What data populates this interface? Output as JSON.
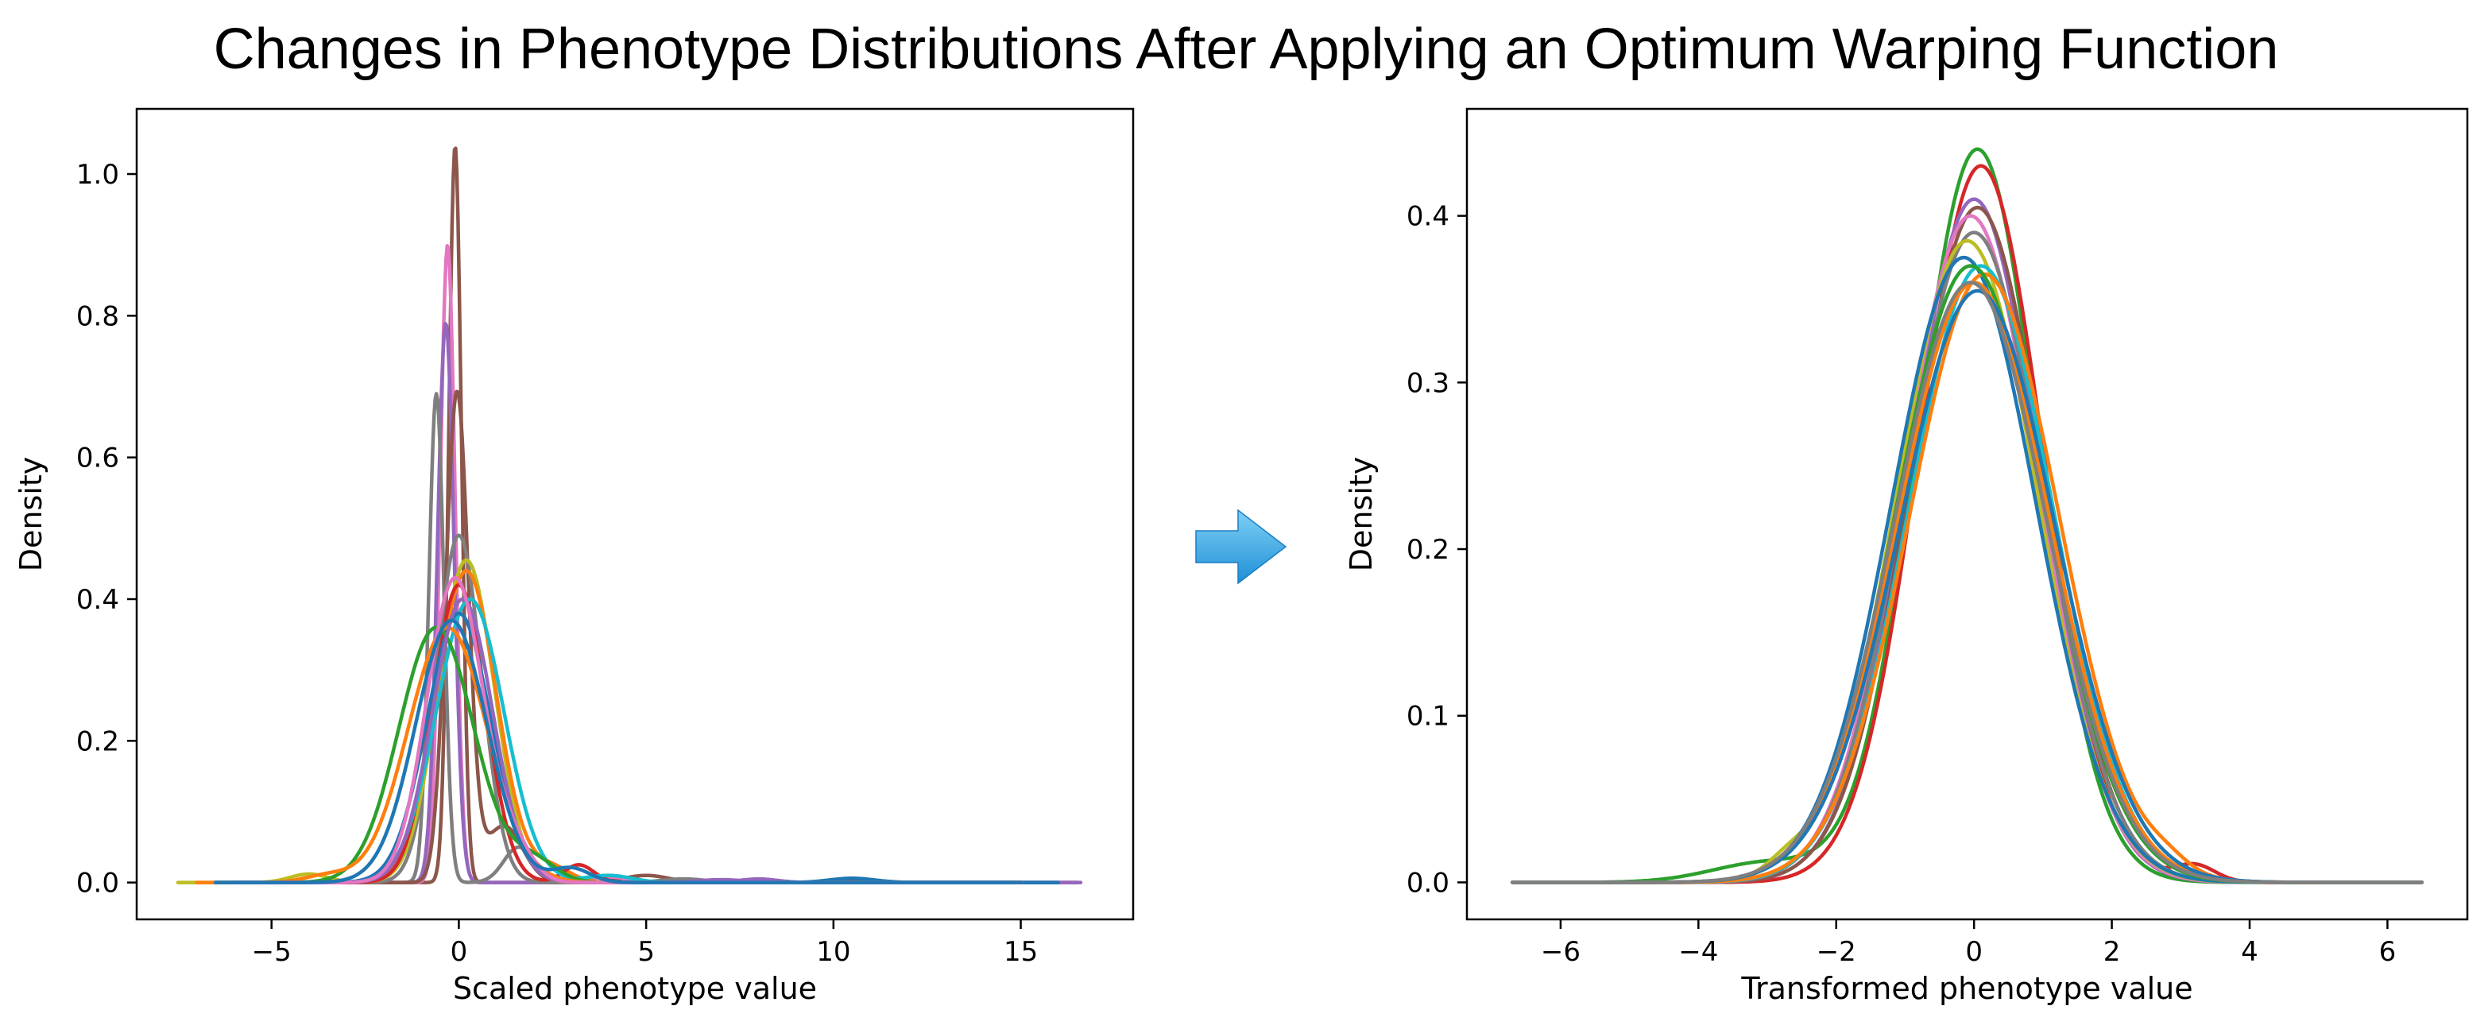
{
  "figure": {
    "title": "Changes in Phenotype Distributions After Applying an Optimum Warping Function",
    "arrow": {
      "icon": "right-arrow-icon",
      "color_light": "#7fd0f5",
      "color_dark": "#1f8fd6"
    }
  },
  "palette": [
    "#1f77b4",
    "#ff7f0e",
    "#2ca02c",
    "#d62728",
    "#9467bd",
    "#8c564b",
    "#e377c2",
    "#7f7f7f",
    "#bcbd22",
    "#17becf"
  ],
  "chart_data": [
    {
      "type": "line",
      "xlabel": "Scaled phenotype value",
      "ylabel": "Density",
      "xlim": [
        -8.6,
        18.0
      ],
      "ylim": [
        -0.052,
        1.092
      ],
      "xticks": [
        -5,
        0,
        5,
        10,
        15
      ],
      "xtick_labels": [
        "−5",
        "0",
        "5",
        "10",
        "15"
      ],
      "yticks": [
        0.0,
        0.2,
        0.4,
        0.6,
        0.8,
        1.0
      ],
      "ytick_labels": [
        "0.0",
        "0.2",
        "0.4",
        "0.6",
        "0.8",
        "1.0"
      ],
      "grid": false,
      "legend": "none",
      "series": [
        {
          "color": "#8c564b",
          "range": [
            -6.0,
            16.5
          ],
          "peaks": [
            {
              "m": -0.1,
              "s": 0.17,
              "a": 1.04
            }
          ],
          "tail": [
            {
              "m": 5.0,
              "s": 0.6,
              "a": 0.01
            },
            {
              "m": 10.5,
              "s": 0.5,
              "a": 0.005
            }
          ]
        },
        {
          "color": "#e377c2",
          "range": [
            -6.0,
            16.5
          ],
          "peaks": [
            {
              "m": -0.3,
              "s": 0.2,
              "a": 0.9
            }
          ],
          "tail": [
            {
              "m": 4.0,
              "s": 0.5,
              "a": 0.008
            }
          ]
        },
        {
          "color": "#9467bd",
          "range": [
            -6.5,
            16.6
          ],
          "peaks": [
            {
              "m": -0.35,
              "s": 0.22,
              "a": 0.79
            }
          ],
          "tail": [
            {
              "m": 8.0,
              "s": 0.5,
              "a": 0.005
            }
          ]
        },
        {
          "color": "#7f7f7f",
          "range": [
            -6.0,
            15.0
          ],
          "peaks": [
            {
              "m": -0.6,
              "s": 0.2,
              "a": 0.69
            }
          ],
          "tail": [
            {
              "m": 1.6,
              "s": 0.4,
              "a": 0.05
            }
          ]
        },
        {
          "color": "#8c564b",
          "range": [
            -6.0,
            15.0
          ],
          "peaks": [
            {
              "m": -0.05,
              "s": 0.3,
              "a": 0.69
            }
          ],
          "tail": [
            {
              "m": 1.2,
              "s": 0.5,
              "a": 0.08
            }
          ]
        },
        {
          "color": "#7f7f7f",
          "range": [
            -6.0,
            15.0
          ],
          "peaks": [
            {
              "m": 0.0,
              "s": 0.6,
              "a": 0.49
            }
          ],
          "tail": [
            {
              "m": 6.0,
              "s": 0.6,
              "a": 0.005
            }
          ]
        },
        {
          "color": "#bcbd22",
          "range": [
            -7.5,
            15.0
          ],
          "peaks": [
            {
              "m": 0.2,
              "s": 0.75,
              "a": 0.455
            }
          ],
          "tail": [
            {
              "m": -4.0,
              "s": 0.5,
              "a": 0.012
            }
          ]
        },
        {
          "color": "#ff7f0e",
          "range": [
            -6.0,
            15.0
          ],
          "peaks": [
            {
              "m": 0.2,
              "s": 0.8,
              "a": 0.44
            }
          ],
          "tail": [
            {
              "m": 2.5,
              "s": 0.5,
              "a": 0.02
            }
          ]
        },
        {
          "color": "#d62728",
          "range": [
            -5.0,
            15.0
          ],
          "peaks": [
            {
              "m": 0.0,
              "s": 0.7,
              "a": 0.42
            }
          ],
          "tail": [
            {
              "m": 3.2,
              "s": 0.4,
              "a": 0.025
            }
          ]
        },
        {
          "color": "#17becf",
          "range": [
            -6.5,
            15.0
          ],
          "peaks": [
            {
              "m": 0.3,
              "s": 0.9,
              "a": 0.4
            }
          ],
          "tail": [
            {
              "m": 4.0,
              "s": 0.6,
              "a": 0.01
            }
          ]
        },
        {
          "color": "#1f77b4",
          "range": [
            -6.5,
            16.0
          ],
          "peaks": [
            {
              "m": 0.0,
              "s": 0.85,
              "a": 0.38
            }
          ],
          "tail": [
            {
              "m": 10.5,
              "s": 0.6,
              "a": 0.006
            }
          ]
        },
        {
          "color": "#2ca02c",
          "range": [
            -6.5,
            15.0
          ],
          "peaks": [
            {
              "m": -0.6,
              "s": 1.0,
              "a": 0.36
            }
          ],
          "tail": [
            {
              "m": 2.0,
              "s": 0.6,
              "a": 0.03
            }
          ]
        },
        {
          "color": "#ff7f0e",
          "range": [
            -7.0,
            15.0
          ],
          "peaks": [
            {
              "m": -0.3,
              "s": 1.05,
              "a": 0.36
            }
          ],
          "tail": [
            {
              "m": -3.5,
              "s": 0.6,
              "a": 0.01
            }
          ]
        },
        {
          "color": "#9467bd",
          "range": [
            -6.0,
            15.0
          ],
          "peaks": [
            {
              "m": 0.1,
              "s": 0.8,
              "a": 0.4
            }
          ],
          "tail": [
            {
              "m": 7.0,
              "s": 0.6,
              "a": 0.004
            }
          ]
        },
        {
          "color": "#e377c2",
          "range": [
            -6.0,
            15.0
          ],
          "peaks": [
            {
              "m": -0.1,
              "s": 0.75,
              "a": 0.43
            }
          ],
          "tail": [
            {
              "m": 1.5,
              "s": 0.5,
              "a": 0.04
            }
          ]
        },
        {
          "color": "#1f77b4",
          "range": [
            -6.5,
            15.0
          ],
          "peaks": [
            {
              "m": -0.2,
              "s": 0.95,
              "a": 0.37
            }
          ],
          "tail": [
            {
              "m": 3.0,
              "s": 0.5,
              "a": 0.02
            }
          ]
        }
      ]
    },
    {
      "type": "line",
      "xlabel": "Transformed phenotype value",
      "ylabel": "Density",
      "xlim": [
        -7.36,
        7.16
      ],
      "ylim": [
        -0.0222,
        0.4642
      ],
      "xticks": [
        -6,
        -4,
        -2,
        0,
        2,
        4,
        6
      ],
      "xtick_labels": [
        "−6",
        "−4",
        "−2",
        "0",
        "2",
        "4",
        "6"
      ],
      "yticks": [
        0.0,
        0.1,
        0.2,
        0.3,
        0.4
      ],
      "ytick_labels": [
        "0.0",
        "0.1",
        "0.2",
        "0.3",
        "0.4"
      ],
      "grid": false,
      "legend": "none",
      "series": [
        {
          "color": "#2ca02c",
          "range": [
            -6.7,
            6.5
          ],
          "peaks": [
            {
              "m": 0.05,
              "s": 0.88,
              "a": 0.44
            }
          ],
          "tail": [
            {
              "m": -3.0,
              "s": 0.8,
              "a": 0.012
            }
          ]
        },
        {
          "color": "#d62728",
          "range": [
            -6.7,
            6.5
          ],
          "peaks": [
            {
              "m": 0.1,
              "s": 0.9,
              "a": 0.43
            }
          ],
          "tail": [
            {
              "m": 3.2,
              "s": 0.3,
              "a": 0.01
            }
          ]
        },
        {
          "color": "#9467bd",
          "range": [
            -6.7,
            6.5
          ],
          "peaks": [
            {
              "m": 0.0,
              "s": 0.95,
              "a": 0.41
            }
          ],
          "tail": []
        },
        {
          "color": "#8c564b",
          "range": [
            -6.7,
            6.5
          ],
          "peaks": [
            {
              "m": 0.05,
              "s": 0.97,
              "a": 0.405
            }
          ],
          "tail": []
        },
        {
          "color": "#e377c2",
          "range": [
            -6.7,
            6.5
          ],
          "peaks": [
            {
              "m": -0.05,
              "s": 0.98,
              "a": 0.4
            }
          ],
          "tail": []
        },
        {
          "color": "#7f7f7f",
          "range": [
            -6.7,
            6.5
          ],
          "peaks": [
            {
              "m": 0.0,
              "s": 1.0,
              "a": 0.39
            }
          ],
          "tail": []
        },
        {
          "color": "#bcbd22",
          "range": [
            -6.7,
            6.5
          ],
          "peaks": [
            {
              "m": -0.1,
              "s": 1.02,
              "a": 0.385
            }
          ],
          "tail": [
            {
              "m": -2.7,
              "s": 0.3,
              "a": 0.008
            }
          ]
        },
        {
          "color": "#1f77b4",
          "range": [
            -6.7,
            6.5
          ],
          "peaks": [
            {
              "m": -0.15,
              "s": 1.05,
              "a": 0.375
            }
          ],
          "tail": []
        },
        {
          "color": "#17becf",
          "range": [
            -6.7,
            6.5
          ],
          "peaks": [
            {
              "m": 0.1,
              "s": 1.05,
              "a": 0.37
            }
          ],
          "tail": []
        },
        {
          "color": "#ff7f0e",
          "range": [
            -6.7,
            6.5
          ],
          "peaks": [
            {
              "m": 0.15,
              "s": 1.08,
              "a": 0.365
            }
          ],
          "tail": [
            {
              "m": 2.8,
              "s": 0.3,
              "a": 0.006
            }
          ]
        },
        {
          "color": "#2ca02c",
          "range": [
            -6.7,
            6.5
          ],
          "peaks": [
            {
              "m": -0.05,
              "s": 1.08,
              "a": 0.37
            }
          ],
          "tail": []
        },
        {
          "color": "#ff7f0e",
          "range": [
            -6.7,
            6.5
          ],
          "peaks": [
            {
              "m": 0.0,
              "s": 1.1,
              "a": 0.36
            }
          ],
          "tail": []
        },
        {
          "color": "#1f77b4",
          "range": [
            -6.7,
            6.5
          ],
          "peaks": [
            {
              "m": 0.05,
              "s": 1.12,
              "a": 0.355
            }
          ],
          "tail": []
        },
        {
          "color": "#7f7f7f",
          "range": [
            -6.7,
            6.5
          ],
          "peaks": [
            {
              "m": -0.05,
              "s": 1.1,
              "a": 0.36
            }
          ],
          "tail": []
        }
      ]
    }
  ]
}
